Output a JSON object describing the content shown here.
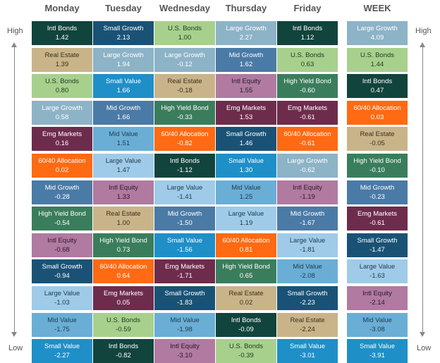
{
  "labels": {
    "high": "High",
    "low": "Low"
  },
  "colors": {
    "Large Growth": {
      "bg": "#8db3c7",
      "fg": "#ffffff"
    },
    "Small Growth": {
      "bg": "#1a5276",
      "fg": "#ffffff"
    },
    "Mid Growth": {
      "bg": "#4a7aa6",
      "fg": "#ffffff"
    },
    "Large Value": {
      "bg": "#9fcbe8",
      "fg": "#1f3b4d"
    },
    "Mid Value": {
      "bg": "#6aaed6",
      "fg": "#1f3b4d"
    },
    "Small Value": {
      "bg": "#1f8fc8",
      "fg": "#ffffff"
    },
    "Intl Bonds": {
      "bg": "#11443c",
      "fg": "#ffffff"
    },
    "U.S. Bonds": {
      "bg": "#a8d08d",
      "fg": "#1f3b1f"
    },
    "High Yield Bond": {
      "bg": "#3a7d5c",
      "fg": "#ffffff"
    },
    "Real Estate": {
      "bg": "#c9b48a",
      "fg": "#3b2f1a"
    },
    "Intl Equity": {
      "bg": "#b07aa1",
      "fg": "#2d1a28"
    },
    "Emg Markets": {
      "bg": "#6e2c4d",
      "fg": "#ffffff"
    },
    "60/40 Allocation": {
      "bg": "#ff6a13",
      "fg": "#ffffff"
    }
  },
  "chart_data": {
    "type": "table",
    "title": "",
    "columns": [
      {
        "header": "Monday",
        "cells": [
          {
            "name": "Intl Bonds",
            "value": "1.42"
          },
          {
            "name": "Real Estate",
            "value": "1.39"
          },
          {
            "name": "U.S. Bonds",
            "value": "0.80"
          },
          {
            "name": "Large Growth",
            "value": "0.58"
          },
          {
            "name": "Emg Markets",
            "value": "0.16"
          },
          {
            "name": "60/40 Allocation",
            "value": "0.02"
          },
          {
            "name": "Mid Growth",
            "value": "-0.28"
          },
          {
            "name": "High Yield Bond",
            "value": "-0.54"
          },
          {
            "name": "Intl Equity",
            "value": "-0.68"
          },
          {
            "name": "Small Growth",
            "value": "-0.94"
          },
          {
            "name": "Large Value",
            "value": "-1.03"
          },
          {
            "name": "Mid Value",
            "value": "-1.75"
          },
          {
            "name": "Small Value",
            "value": "-2.27"
          }
        ]
      },
      {
        "header": "Tuesday",
        "cells": [
          {
            "name": "Small Growth",
            "value": "2.13"
          },
          {
            "name": "Large Growth",
            "value": "1.94"
          },
          {
            "name": "Small Value",
            "value": "1.66"
          },
          {
            "name": "Mid Growth",
            "value": "1.66"
          },
          {
            "name": "Mid Value",
            "value": "1.51"
          },
          {
            "name": "Large Value",
            "value": "1.47"
          },
          {
            "name": "Intl Equity",
            "value": "1.33"
          },
          {
            "name": "Real Estate",
            "value": "1.00"
          },
          {
            "name": "High Yield Bond",
            "value": "0.73"
          },
          {
            "name": "60/40 Allocation",
            "value": "0.64"
          },
          {
            "name": "Emg Markets",
            "value": "0.05"
          },
          {
            "name": "U.S. Bonds",
            "value": "-0.59"
          },
          {
            "name": "Intl Bonds",
            "value": "-0.82"
          }
        ]
      },
      {
        "header": "Wednesday",
        "cells": [
          {
            "name": "U.S. Bonds",
            "value": "1.00"
          },
          {
            "name": "Large Growth",
            "value": "-0.12"
          },
          {
            "name": "Real Estate",
            "value": "-0.18"
          },
          {
            "name": "High Yield Bond",
            "value": "-0.33"
          },
          {
            "name": "60/40 Allocation",
            "value": "-0.82"
          },
          {
            "name": "Intl Bonds",
            "value": "-1.12"
          },
          {
            "name": "Large Value",
            "value": "-1.41"
          },
          {
            "name": "Mid Growth",
            "value": "-1.50"
          },
          {
            "name": "Small Value",
            "value": "-1.56"
          },
          {
            "name": "Emg Markets",
            "value": "-1.71"
          },
          {
            "name": "Small Growth",
            "value": "-1.83"
          },
          {
            "name": "Mid Value",
            "value": "-1.98"
          },
          {
            "name": "Intl Equity",
            "value": "-3.10"
          }
        ]
      },
      {
        "header": "Thursday",
        "cells": [
          {
            "name": "Large Growth",
            "value": "2.27"
          },
          {
            "name": "Mid Growth",
            "value": "1.62"
          },
          {
            "name": "Intl Equity",
            "value": "1.55"
          },
          {
            "name": "Emg Markets",
            "value": "1.53"
          },
          {
            "name": "Small Growth",
            "value": "1.46"
          },
          {
            "name": "Small Value",
            "value": "1.30"
          },
          {
            "name": "Mid Value",
            "value": "1.25"
          },
          {
            "name": "Large Value",
            "value": "1.19"
          },
          {
            "name": "60/40 Allocation",
            "value": "0.81"
          },
          {
            "name": "High Yield Bond",
            "value": "0.65"
          },
          {
            "name": "Real Estate",
            "value": "0.02"
          },
          {
            "name": "Intl Bonds",
            "value": "-0.09"
          },
          {
            "name": "U.S. Bonds",
            "value": "-0.39"
          }
        ]
      },
      {
        "header": "Friday",
        "cells": [
          {
            "name": "Intl Bonds",
            "value": "1.12"
          },
          {
            "name": "U.S. Bonds",
            "value": "0.63"
          },
          {
            "name": "High Yield Bond",
            "value": "-0.60"
          },
          {
            "name": "Emg Markets",
            "value": "-0.61"
          },
          {
            "name": "60/40 Allocation",
            "value": "-0.61"
          },
          {
            "name": "Large Growth",
            "value": "-0.62"
          },
          {
            "name": "Intl Equity",
            "value": "-1.19"
          },
          {
            "name": "Mid Growth",
            "value": "-1.67"
          },
          {
            "name": "Large Value",
            "value": "-1.81"
          },
          {
            "name": "Mid Value",
            "value": "-2.08"
          },
          {
            "name": "Small Growth",
            "value": "-2.23"
          },
          {
            "name": "Real Estate",
            "value": "-2.24"
          },
          {
            "name": "Small Value",
            "value": "-3.01"
          }
        ]
      },
      {
        "header": "WEEK",
        "cells": [
          {
            "name": "Large Growth",
            "value": "4.09"
          },
          {
            "name": "U.S. Bonds",
            "value": "1.44"
          },
          {
            "name": "Intl Bonds",
            "value": "0.47"
          },
          {
            "name": "60/40 Allocation",
            "value": "0.03"
          },
          {
            "name": "Real Estate",
            "value": "-0.05"
          },
          {
            "name": "High Yield Bond",
            "value": "-0.10"
          },
          {
            "name": "Mid Growth",
            "value": "-0.23"
          },
          {
            "name": "Emg Markets",
            "value": "-0.61"
          },
          {
            "name": "Small Growth",
            "value": "-1.47"
          },
          {
            "name": "Large Value",
            "value": "-1.63"
          },
          {
            "name": "Intl Equity",
            "value": "-2.14"
          },
          {
            "name": "Mid Value",
            "value": "-3.08"
          },
          {
            "name": "Small Value",
            "value": "-3.91"
          }
        ]
      }
    ]
  }
}
